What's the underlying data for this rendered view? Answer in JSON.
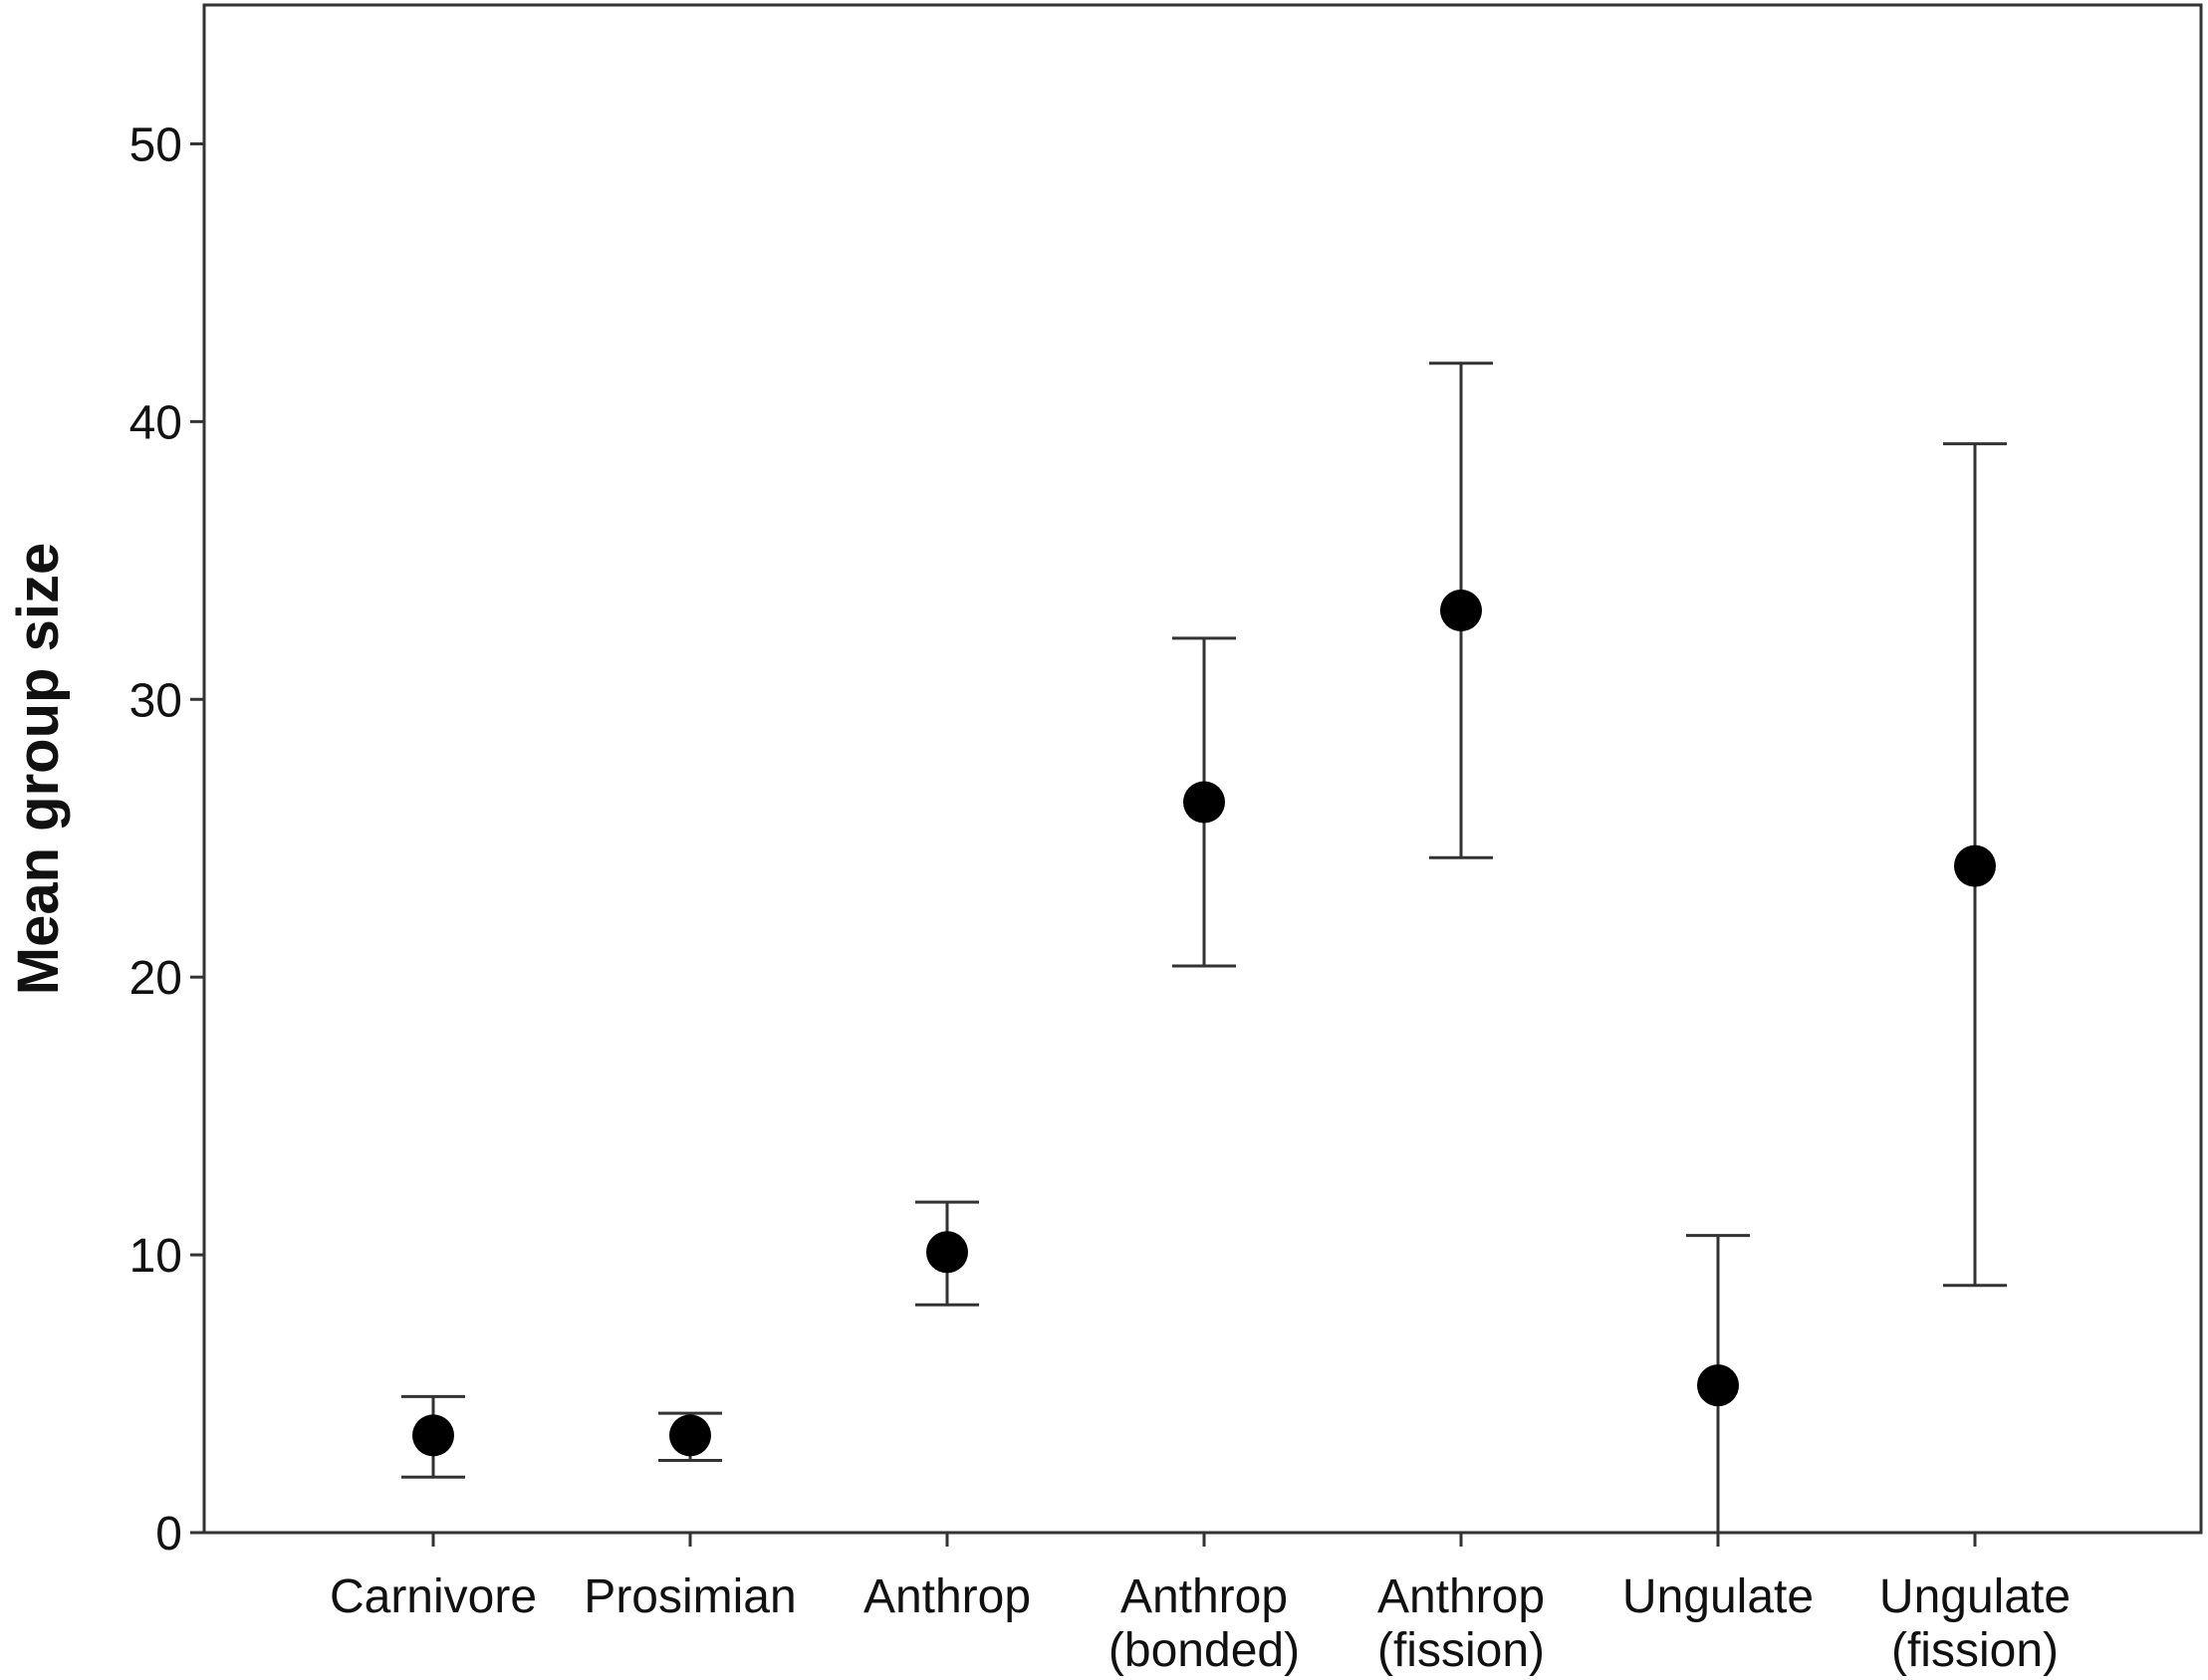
{
  "chart_data": {
    "type": "scatter",
    "title": "",
    "xlabel": "",
    "ylabel": "Mean group size",
    "ylim": [
      0,
      55
    ],
    "yticks": [
      0,
      10,
      20,
      30,
      40,
      50
    ],
    "grid": false,
    "categories": [
      [
        "Carnivore"
      ],
      [
        "Prosimian"
      ],
      [
        "Anthrop"
      ],
      [
        "Anthrop",
        "(bonded)"
      ],
      [
        "Anthrop",
        "(fission)"
      ],
      [
        "Ungulate"
      ],
      [
        "Ungulate",
        "(fission)"
      ]
    ],
    "series": [
      {
        "values": [
          3.5,
          3.5,
          10.1,
          26.3,
          33.2,
          5.3,
          24.0
        ],
        "error_low": [
          2.0,
          2.6,
          8.2,
          20.4,
          24.3,
          0.0,
          8.9
        ],
        "error_high": [
          4.9,
          4.3,
          11.9,
          32.2,
          42.1,
          10.7,
          39.2
        ]
      }
    ],
    "colors": {
      "marker": "#000000",
      "axis": "#333333",
      "errorbar": "#333333"
    }
  }
}
